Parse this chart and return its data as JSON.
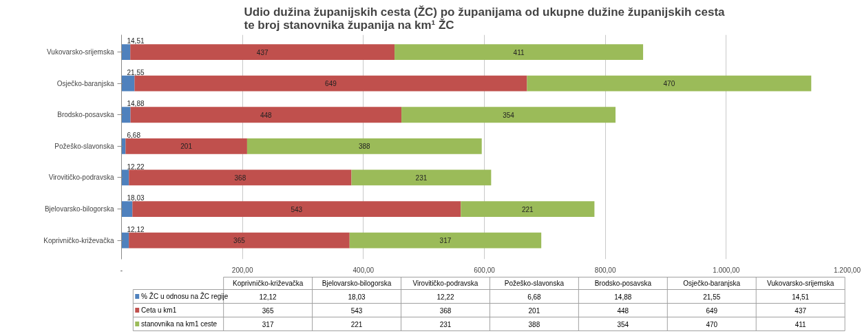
{
  "chart_data": {
    "type": "bar",
    "orientation": "horizontal",
    "stacked": true,
    "title": "Udio dužina županijskih cesta (ŽC) po županijama od ukupne dužine županijskih cesta\nte  broj stanovnika županija na km¹ ŽC",
    "categories": [
      "Vukovarsko-srijemska",
      "Osječko-baranjska",
      "Brodsko-posavska",
      "Požeško-slavonska",
      "Virovitičko-podravska",
      "Bjelovarsko-bilogorska",
      "Koprivničko-križevačka"
    ],
    "series": [
      {
        "name": "%  ŽC u odnosu na ŽC regije",
        "color": "#4f81bd",
        "values": [
          14.51,
          21.55,
          14.88,
          6.68,
          12.22,
          18.03,
          12.12
        ],
        "value_labels": [
          "14,51",
          "21,55",
          "14,88",
          "6,68",
          "12,22",
          "18,03",
          "12,12"
        ]
      },
      {
        "name": "Ceta u km1",
        "color": "#c0504d",
        "values": [
          437,
          649,
          448,
          201,
          368,
          543,
          365
        ],
        "value_labels": [
          "437",
          "649",
          "448",
          "201",
          "368",
          "543",
          "365"
        ]
      },
      {
        "name": "stanovnika na km1 ceste",
        "color": "#9bbb59",
        "values": [
          411,
          470,
          354,
          388,
          231,
          221,
          317
        ],
        "value_labels": [
          "411",
          "470",
          "354",
          "388",
          "231",
          "221",
          "317"
        ]
      }
    ],
    "xlim": [
      0,
      1200
    ],
    "xticks": [
      {
        "value": 0,
        "label": "-"
      },
      {
        "value": 200,
        "label": "200,00"
      },
      {
        "value": 400,
        "label": "400,00"
      },
      {
        "value": 600,
        "label": "600,00"
      },
      {
        "value": 800,
        "label": "800,00"
      },
      {
        "value": 1000,
        "label": "1.000,00"
      },
      {
        "value": 1200,
        "label": "1.200,00"
      }
    ],
    "grid": "x",
    "legend": "bottom",
    "data_labels": true
  }
}
